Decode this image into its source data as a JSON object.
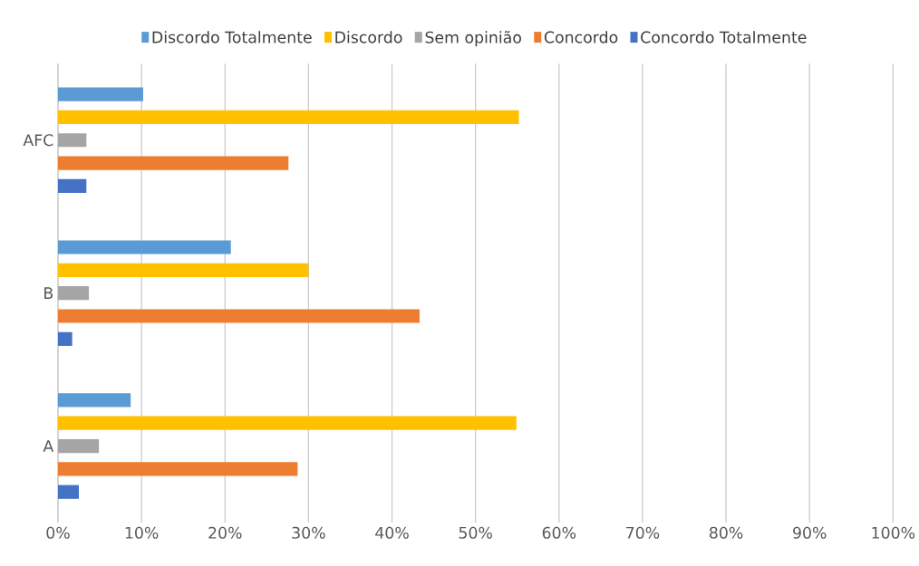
{
  "chart_data": {
    "type": "bar",
    "orientation": "horizontal",
    "categories": [
      "AFC",
      "B",
      "A"
    ],
    "series": [
      {
        "name": "Discordo Totalmente",
        "color": "#5b9bd5",
        "values": [
          10.2,
          20.7,
          8.7
        ]
      },
      {
        "name": "Discordo",
        "color": "#ffc000",
        "values": [
          55.2,
          30.0,
          54.9
        ]
      },
      {
        "name": "Sem opinião",
        "color": "#a5a5a5",
        "values": [
          3.4,
          3.7,
          4.9
        ]
      },
      {
        "name": "Concordo",
        "color": "#ed7d31",
        "values": [
          27.6,
          43.3,
          28.7
        ]
      },
      {
        "name": "Concordo Totalmente",
        "color": "#4472c4",
        "values": [
          3.4,
          1.7,
          2.5
        ]
      }
    ],
    "xlim": [
      0,
      100
    ],
    "xticks": [
      {
        "value": 0,
        "label": "0%"
      },
      {
        "value": 10,
        "label": "10%"
      },
      {
        "value": 20,
        "label": "20%"
      },
      {
        "value": 30,
        "label": "30%"
      },
      {
        "value": 40,
        "label": "40%"
      },
      {
        "value": 50,
        "label": "50%"
      },
      {
        "value": 60,
        "label": "60%"
      },
      {
        "value": 70,
        "label": "70%"
      },
      {
        "value": 80,
        "label": "80%"
      },
      {
        "value": 90,
        "label": "90%"
      },
      {
        "value": 100,
        "label": "100%"
      }
    ],
    "grid": "x",
    "legend": "top"
  }
}
